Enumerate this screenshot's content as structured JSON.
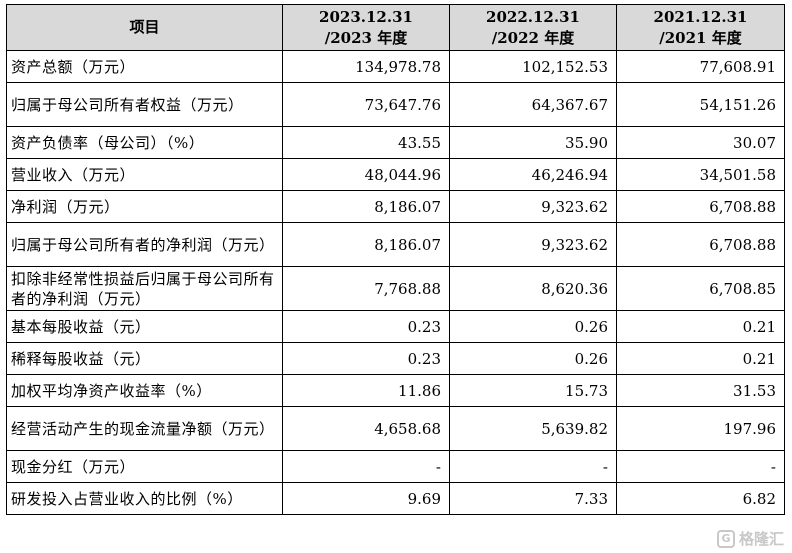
{
  "table": {
    "headers": [
      "项目",
      "2023.12.31\n/2023 年度",
      "2022.12.31\n/2022 年度",
      "2021.12.31\n/2021 年度"
    ],
    "header_lines": [
      [
        "项目"
      ],
      [
        "2023.12.31",
        "/2023 年度"
      ],
      [
        "2022.12.31",
        "/2022 年度"
      ],
      [
        "2021.12.31",
        "/2021 年度"
      ]
    ],
    "rows": [
      {
        "label": "资产总额（万元）",
        "values": [
          "134,978.78",
          "102,152.53",
          "77,608.91"
        ]
      },
      {
        "label": "归属于母公司所有者权益（万元）",
        "values": [
          "73,647.76",
          "64,367.67",
          "54,151.26"
        ]
      },
      {
        "label": "资产负债率（母公司）（%）",
        "values": [
          "43.55",
          "35.90",
          "30.07"
        ]
      },
      {
        "label": "营业收入（万元）",
        "values": [
          "48,044.96",
          "46,246.94",
          "34,501.58"
        ]
      },
      {
        "label": "净利润（万元）",
        "values": [
          "8,186.07",
          "9,323.62",
          "6,708.88"
        ]
      },
      {
        "label": "归属于母公司所有者的净利润（万元）",
        "values": [
          "8,186.07",
          "9,323.62",
          "6,708.88"
        ]
      },
      {
        "label": "扣除非经常性损益后归属于母公司所有者的净利润（万元）",
        "values": [
          "7,768.88",
          "8,620.36",
          "6,708.85"
        ]
      },
      {
        "label": "基本每股收益（元）",
        "values": [
          "0.23",
          "0.26",
          "0.21"
        ]
      },
      {
        "label": "稀释每股收益（元）",
        "values": [
          "0.23",
          "0.26",
          "0.21"
        ]
      },
      {
        "label": "加权平均净资产收益率（%）",
        "values": [
          "11.86",
          "15.73",
          "31.53"
        ]
      },
      {
        "label": "经营活动产生的现金流量净额（万元）",
        "values": [
          "4,658.68",
          "5,639.82",
          "197.96"
        ]
      },
      {
        "label": "现金分红（万元）",
        "values": [
          "-",
          "-",
          "-"
        ]
      },
      {
        "label": "研发投入占营业收入的比例（%）",
        "values": [
          "9.69",
          "7.33",
          "6.82"
        ]
      }
    ]
  },
  "watermark": {
    "icon": "gelonghui-logo-icon",
    "text": "格隆汇"
  }
}
